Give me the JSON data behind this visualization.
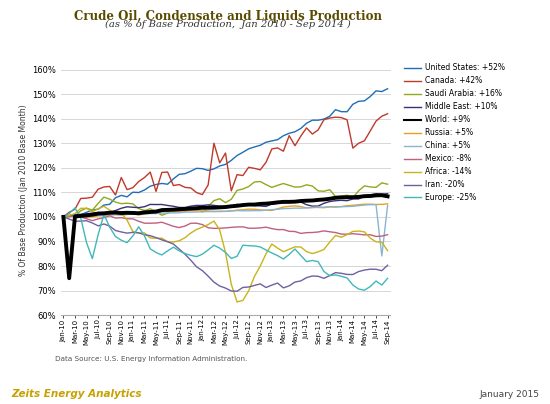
{
  "title1": "Crude Oil, Condensate and Liquids Production",
  "title2": "(as % of Base Production,  Jan 2010 - Sep 2014 )",
  "ylabel": "% Of Base Production (Jan 2010 Base Month)",
  "datasource": "Data Source: U.S. Energy Information Administration.",
  "footer_left": "Zeits Energy Analytics",
  "footer_right": "January 2015",
  "ylim": [
    60,
    162
  ],
  "yticks": [
    60,
    70,
    80,
    90,
    100,
    110,
    120,
    130,
    140,
    150,
    160
  ],
  "series": {
    "United States": {
      "color": "#1f6eb5",
      "lw": 1.0,
      "label": "United States: +52%"
    },
    "Canada": {
      "color": "#c0392b",
      "lw": 1.0,
      "label": "Canada: +42%"
    },
    "Saudi Arabia": {
      "color": "#8faa1c",
      "lw": 1.0,
      "label": "Saudi Arabia: +16%"
    },
    "Middle East": {
      "color": "#3b3077",
      "lw": 1.0,
      "label": "Middle East: +10%"
    },
    "World": {
      "color": "#000000",
      "lw": 2.8,
      "label": "World: +9%"
    },
    "Russia": {
      "color": "#e8a020",
      "lw": 1.0,
      "label": "Russia: +5%"
    },
    "China": {
      "color": "#8ab4d4",
      "lw": 1.0,
      "label": "China: +5%"
    },
    "Mexico": {
      "color": "#c06080",
      "lw": 1.0,
      "label": "Mexico: -8%"
    },
    "Africa": {
      "color": "#c8b418",
      "lw": 1.0,
      "label": "Africa: -14%"
    },
    "Iran": {
      "color": "#7060a0",
      "lw": 1.0,
      "label": "Iran: -20%"
    },
    "Europe": {
      "color": "#40b8b8",
      "lw": 1.0,
      "label": "Europe: -25%"
    }
  },
  "n_months": 57,
  "bg": "#ffffff",
  "grid_color": "#d0d0d0",
  "spine_color": "#aaaaaa"
}
